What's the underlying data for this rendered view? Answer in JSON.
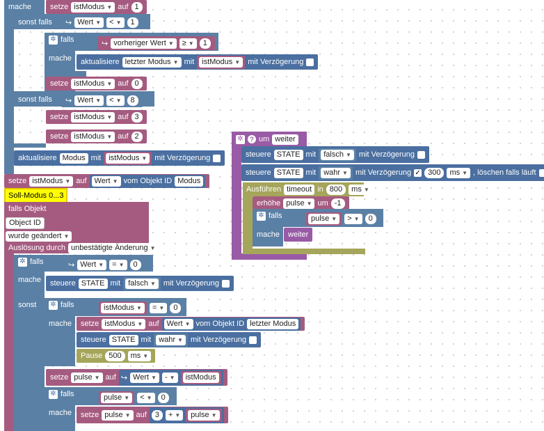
{
  "kw": {
    "mache": "mache",
    "sonst_falls": "sonst falls",
    "sonst": "sonst",
    "falls": "falls",
    "setze": "setze",
    "auf": "auf",
    "mit": "mit",
    "mit_verz": "mit Verzögerung",
    "aktualisiere": "aktualisiere",
    "steuere": "steuere",
    "vom_objekt_id": "vom Objekt ID",
    "um": "um",
    "erhoehe": "erhöhe",
    "ausfuehren": "Ausführen",
    "in": "in",
    "pause": "Pause",
    "loeschen": ", löschen falls läuft"
  },
  "fields": {
    "istModus": "istModus",
    "wert": "Wert",
    "vorheriger_wert": "vorheriger Wert",
    "letzter_modus": "letzter Modus",
    "modus": "Modus",
    "state": "STATE",
    "falsch": "falsch",
    "wahr": "wahr",
    "pulse": "pulse",
    "weiter": "weiter",
    "timeout": "timeout",
    "ms": "ms"
  },
  "ops": {
    "lt": "<",
    "ge": "≥",
    "eq": "=",
    "gt": ">",
    "minus": "-",
    "plus": "+"
  },
  "nums": {
    "n1": "1",
    "n0": "0",
    "n8": "8",
    "n3": "3",
    "n2": "2",
    "n300": "300",
    "n800": "800",
    "nm1": "-1",
    "n500": "500"
  },
  "trigger": {
    "comment": "Soll-Modus 0...3",
    "falls_objekt": "falls Objekt",
    "object_id": "Object ID",
    "wurde": "wurde geändert",
    "ausloesung": "Auslösung durch",
    "ausloesung_value": "unbestätigte Änderung"
  },
  "colors": {
    "logic": "#5b80a5",
    "variable": "#a55b80",
    "event": "#995ba5",
    "timer": "#a5a55b",
    "comment": "#ffff00"
  }
}
